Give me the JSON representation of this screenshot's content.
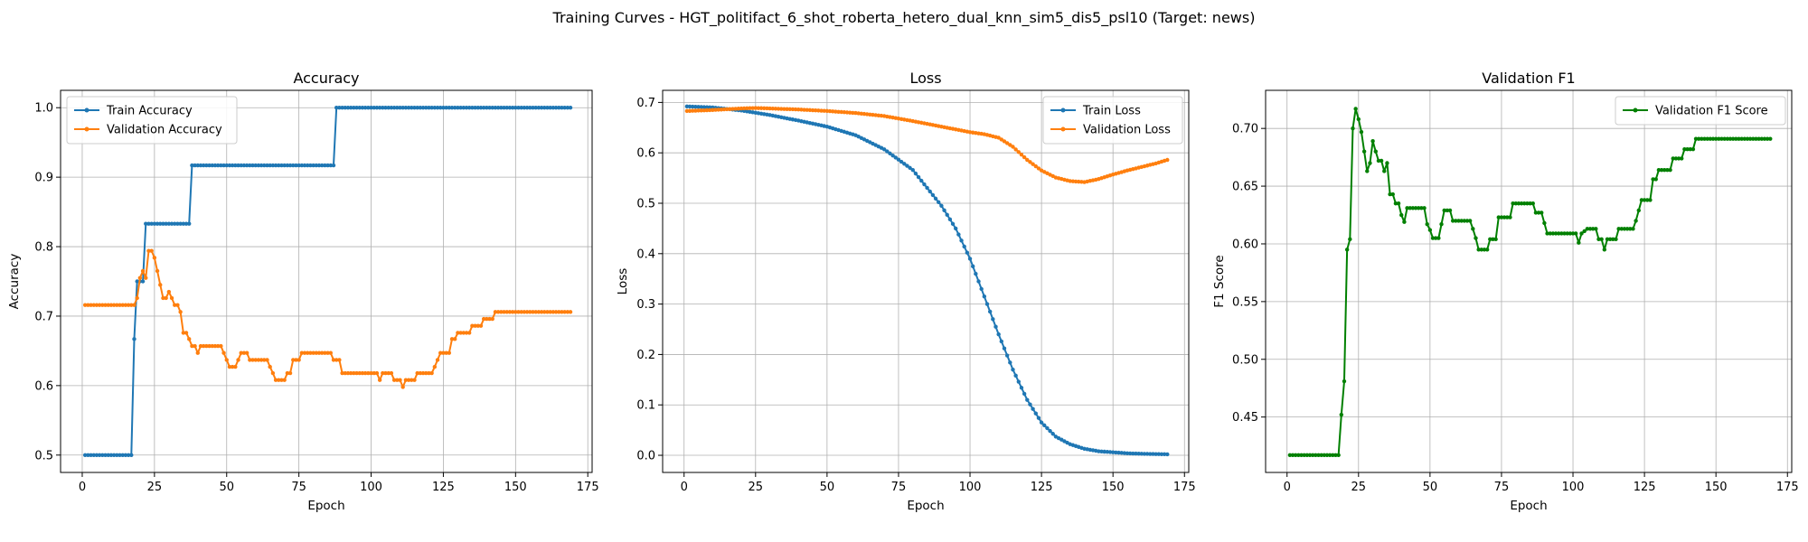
{
  "figure": {
    "title": "Training Curves - HGT_politifact_6_shot_roberta_hetero_dual_knn_sim5_dis5_psl10 (Target: news)"
  },
  "colors": {
    "train": "#1f77b4",
    "validation": "#ff7f0e",
    "f1": "#008000",
    "grid": "#b0b0b0"
  },
  "chart_data": [
    {
      "type": "line",
      "title": "Accuracy",
      "xlabel": "Epoch",
      "ylabel": "Accuracy",
      "xlim": [
        -7.5,
        176.5
      ],
      "ylim": [
        0.475,
        1.025
      ],
      "xticks": [
        0,
        25,
        50,
        75,
        100,
        125,
        150,
        175
      ],
      "yticks": [
        0.5,
        0.6,
        0.7,
        0.8,
        0.9,
        1.0
      ],
      "ytick_labels": [
        "0.5",
        "0.6",
        "0.7",
        "0.8",
        "0.9",
        "1.0"
      ],
      "grid": true,
      "legend_position": "upper-left",
      "series": [
        {
          "name": "Train Accuracy",
          "color": "#1f77b4",
          "points": [
            [
              1,
              0.5
            ],
            [
              17,
              0.5
            ],
            [
              18,
              0.667
            ],
            [
              19,
              0.75
            ],
            [
              21,
              0.75
            ],
            [
              22,
              0.833
            ],
            [
              37,
              0.833
            ],
            [
              38,
              0.917
            ],
            [
              87,
              0.917
            ],
            [
              88,
              1.0
            ],
            [
              169,
              1.0
            ]
          ]
        },
        {
          "name": "Validation Accuracy",
          "color": "#ff7f0e",
          "points": [
            [
              1,
              0.716
            ],
            [
              18,
              0.716
            ],
            [
              19,
              0.726
            ],
            [
              20,
              0.755
            ],
            [
              21,
              0.765
            ],
            [
              22,
              0.755
            ],
            [
              23,
              0.794
            ],
            [
              24,
              0.794
            ],
            [
              25,
              0.784
            ],
            [
              26,
              0.765
            ],
            [
              27,
              0.745
            ],
            [
              28,
              0.726
            ],
            [
              29,
              0.726
            ],
            [
              30,
              0.735
            ],
            [
              31,
              0.726
            ],
            [
              32,
              0.716
            ],
            [
              33,
              0.716
            ],
            [
              34,
              0.706
            ],
            [
              35,
              0.676
            ],
            [
              36,
              0.676
            ],
            [
              37,
              0.667
            ],
            [
              38,
              0.657
            ],
            [
              39,
              0.657
            ],
            [
              40,
              0.647
            ],
            [
              41,
              0.657
            ],
            [
              48,
              0.657
            ],
            [
              49,
              0.647
            ],
            [
              50,
              0.637
            ],
            [
              51,
              0.627
            ],
            [
              53,
              0.627
            ],
            [
              54,
              0.637
            ],
            [
              55,
              0.647
            ],
            [
              57,
              0.647
            ],
            [
              58,
              0.637
            ],
            [
              64,
              0.637
            ],
            [
              65,
              0.627
            ],
            [
              66,
              0.618
            ],
            [
              67,
              0.608
            ],
            [
              70,
              0.608
            ],
            [
              71,
              0.618
            ],
            [
              72,
              0.618
            ],
            [
              73,
              0.637
            ],
            [
              75,
              0.637
            ],
            [
              76,
              0.647
            ],
            [
              86,
              0.647
            ],
            [
              87,
              0.637
            ],
            [
              89,
              0.637
            ],
            [
              90,
              0.618
            ],
            [
              102,
              0.618
            ],
            [
              103,
              0.608
            ],
            [
              104,
              0.618
            ],
            [
              107,
              0.618
            ],
            [
              108,
              0.608
            ],
            [
              110,
              0.608
            ],
            [
              111,
              0.598
            ],
            [
              112,
              0.608
            ],
            [
              115,
              0.608
            ],
            [
              116,
              0.618
            ],
            [
              121,
              0.618
            ],
            [
              122,
              0.627
            ],
            [
              123,
              0.637
            ],
            [
              124,
              0.647
            ],
            [
              127,
              0.647
            ],
            [
              128,
              0.667
            ],
            [
              129,
              0.667
            ],
            [
              130,
              0.676
            ],
            [
              134,
              0.676
            ],
            [
              135,
              0.686
            ],
            [
              138,
              0.686
            ],
            [
              139,
              0.696
            ],
            [
              142,
              0.696
            ],
            [
              143,
              0.706
            ],
            [
              169,
              0.706
            ]
          ]
        }
      ]
    },
    {
      "type": "line",
      "title": "Loss",
      "xlabel": "Epoch",
      "ylabel": "Loss",
      "xlim": [
        -7.5,
        176.5
      ],
      "ylim": [
        -0.034,
        0.724
      ],
      "xticks": [
        0,
        25,
        50,
        75,
        100,
        125,
        150,
        175
      ],
      "yticks": [
        0.0,
        0.1,
        0.2,
        0.3,
        0.4,
        0.5,
        0.6,
        0.7
      ],
      "ytick_labels": [
        "0.0",
        "0.1",
        "0.2",
        "0.3",
        "0.4",
        "0.5",
        "0.6",
        "0.7"
      ],
      "grid": true,
      "legend_position": "upper-right",
      "series": [
        {
          "name": "Train Loss",
          "color": "#1f77b4",
          "points": [
            [
              1,
              0.692
            ],
            [
              10,
              0.69
            ],
            [
              20,
              0.684
            ],
            [
              30,
              0.675
            ],
            [
              40,
              0.664
            ],
            [
              50,
              0.652
            ],
            [
              60,
              0.635
            ],
            [
              70,
              0.607
            ],
            [
              80,
              0.566
            ],
            [
              90,
              0.495
            ],
            [
              95,
              0.45
            ],
            [
              100,
              0.39
            ],
            [
              105,
              0.315
            ],
            [
              110,
              0.24
            ],
            [
              115,
              0.17
            ],
            [
              120,
              0.11
            ],
            [
              125,
              0.065
            ],
            [
              130,
              0.037
            ],
            [
              135,
              0.022
            ],
            [
              140,
              0.013
            ],
            [
              145,
              0.008
            ],
            [
              150,
              0.006
            ],
            [
              155,
              0.004
            ],
            [
              160,
              0.003
            ],
            [
              169,
              0.002
            ]
          ]
        },
        {
          "name": "Validation Loss",
          "color": "#ff7f0e",
          "points": [
            [
              1,
              0.683
            ],
            [
              10,
              0.685
            ],
            [
              20,
              0.688
            ],
            [
              25,
              0.689
            ],
            [
              30,
              0.688
            ],
            [
              40,
              0.686
            ],
            [
              50,
              0.683
            ],
            [
              60,
              0.679
            ],
            [
              70,
              0.673
            ],
            [
              80,
              0.663
            ],
            [
              90,
              0.652
            ],
            [
              100,
              0.641
            ],
            [
              105,
              0.637
            ],
            [
              110,
              0.63
            ],
            [
              115,
              0.612
            ],
            [
              120,
              0.586
            ],
            [
              125,
              0.565
            ],
            [
              130,
              0.551
            ],
            [
              135,
              0.544
            ],
            [
              140,
              0.542
            ],
            [
              145,
              0.548
            ],
            [
              150,
              0.557
            ],
            [
              155,
              0.565
            ],
            [
              160,
              0.572
            ],
            [
              165,
              0.579
            ],
            [
              169,
              0.586
            ]
          ]
        }
      ]
    },
    {
      "type": "line",
      "title": "Validation F1",
      "xlabel": "Epoch",
      "ylabel": "F1 Score",
      "xlim": [
        -7.5,
        176.5
      ],
      "ylim": [
        0.402,
        0.733
      ],
      "xticks": [
        0,
        25,
        50,
        75,
        100,
        125,
        150,
        175
      ],
      "yticks": [
        0.45,
        0.5,
        0.55,
        0.6,
        0.65,
        0.7
      ],
      "ytick_labels": [
        "0.45",
        "0.50",
        "0.55",
        "0.60",
        "0.65",
        "0.70"
      ],
      "grid": true,
      "legend_position": "upper-right",
      "series": [
        {
          "name": "Validation F1 Score",
          "color": "#008000",
          "points": [
            [
              1,
              0.417
            ],
            [
              18,
              0.417
            ],
            [
              19,
              0.452
            ],
            [
              20,
              0.481
            ],
            [
              21,
              0.595
            ],
            [
              22,
              0.604
            ],
            [
              23,
              0.7
            ],
            [
              24,
              0.717
            ],
            [
              25,
              0.708
            ],
            [
              26,
              0.697
            ],
            [
              27,
              0.68
            ],
            [
              28,
              0.663
            ],
            [
              29,
              0.67
            ],
            [
              30,
              0.689
            ],
            [
              31,
              0.68
            ],
            [
              32,
              0.672
            ],
            [
              33,
              0.672
            ],
            [
              34,
              0.663
            ],
            [
              35,
              0.67
            ],
            [
              36,
              0.643
            ],
            [
              37,
              0.643
            ],
            [
              38,
              0.635
            ],
            [
              39,
              0.635
            ],
            [
              40,
              0.625
            ],
            [
              41,
              0.619
            ],
            [
              42,
              0.631
            ],
            [
              48,
              0.631
            ],
            [
              49,
              0.617
            ],
            [
              50,
              0.612
            ],
            [
              51,
              0.605
            ],
            [
              53,
              0.605
            ],
            [
              54,
              0.617
            ],
            [
              55,
              0.629
            ],
            [
              57,
              0.629
            ],
            [
              58,
              0.62
            ],
            [
              64,
              0.62
            ],
            [
              65,
              0.613
            ],
            [
              66,
              0.605
            ],
            [
              67,
              0.595
            ],
            [
              70,
              0.595
            ],
            [
              71,
              0.604
            ],
            [
              73,
              0.604
            ],
            [
              74,
              0.623
            ],
            [
              78,
              0.623
            ],
            [
              79,
              0.635
            ],
            [
              86,
              0.635
            ],
            [
              87,
              0.627
            ],
            [
              89,
              0.627
            ],
            [
              90,
              0.618
            ],
            [
              91,
              0.609
            ],
            [
              101,
              0.609
            ],
            [
              102,
              0.601
            ],
            [
              103,
              0.609
            ],
            [
              104,
              0.611
            ],
            [
              105,
              0.613
            ],
            [
              108,
              0.613
            ],
            [
              109,
              0.604
            ],
            [
              110,
              0.604
            ],
            [
              111,
              0.595
            ],
            [
              112,
              0.604
            ],
            [
              115,
              0.604
            ],
            [
              116,
              0.613
            ],
            [
              121,
              0.613
            ],
            [
              122,
              0.62
            ],
            [
              123,
              0.629
            ],
            [
              124,
              0.638
            ],
            [
              127,
              0.638
            ],
            [
              128,
              0.656
            ],
            [
              129,
              0.656
            ],
            [
              130,
              0.664
            ],
            [
              134,
              0.664
            ],
            [
              135,
              0.674
            ],
            [
              138,
              0.674
            ],
            [
              139,
              0.682
            ],
            [
              142,
              0.682
            ],
            [
              143,
              0.691
            ],
            [
              169,
              0.691
            ]
          ]
        }
      ]
    }
  ]
}
